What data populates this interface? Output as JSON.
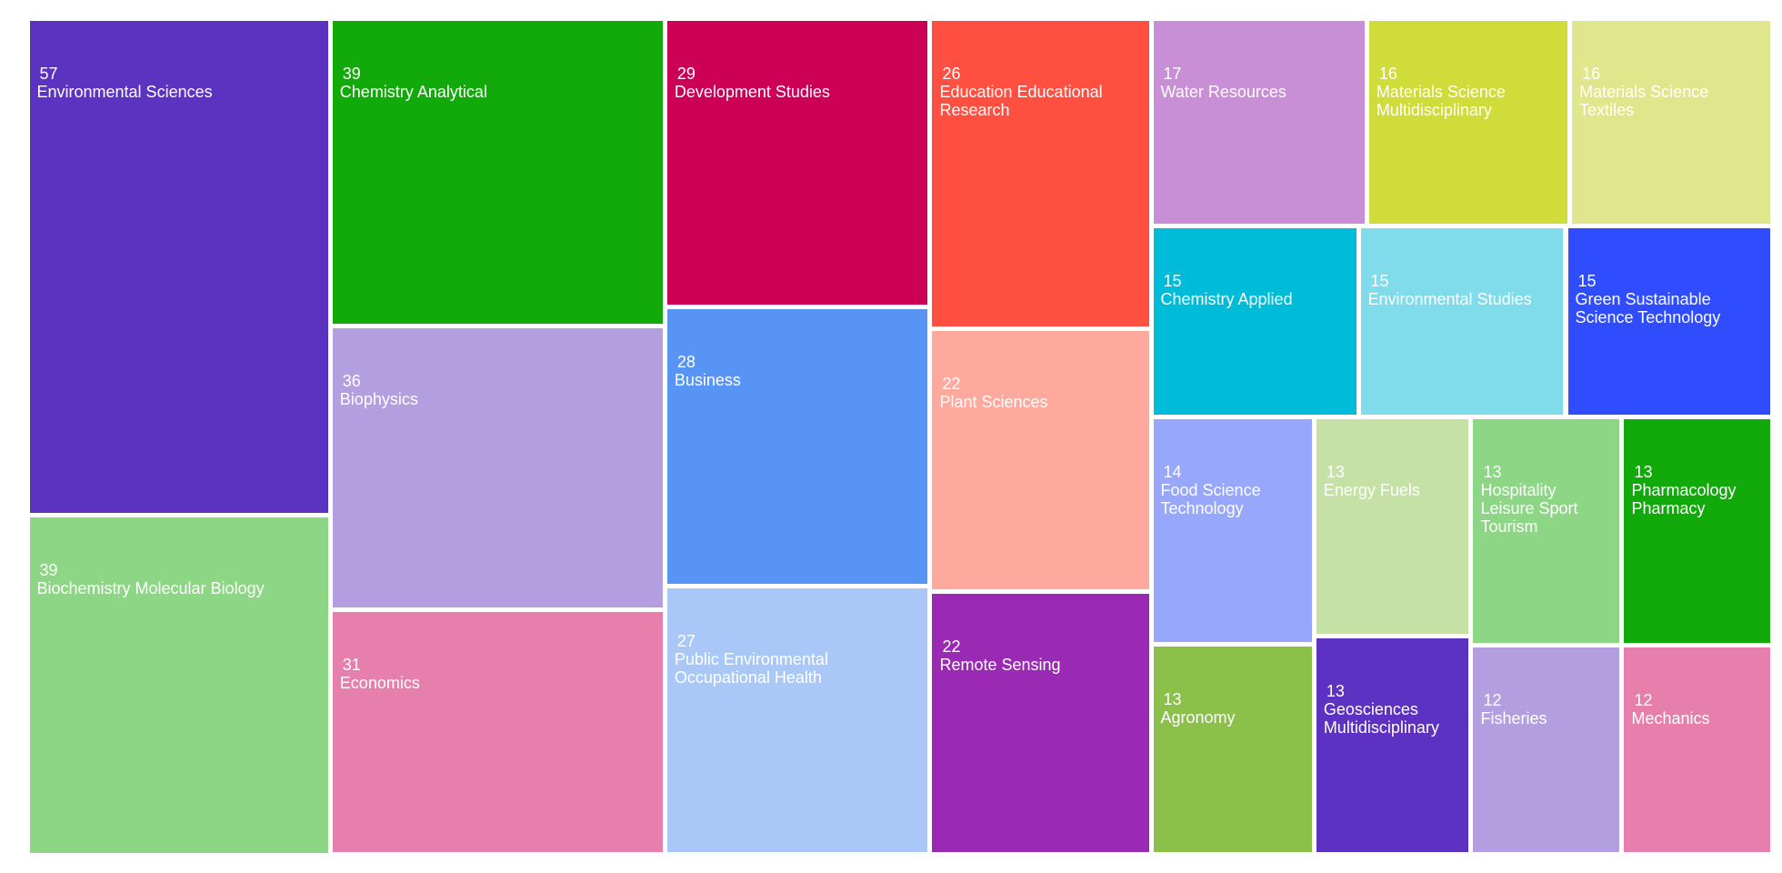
{
  "chart_data": {
    "type": "treemap",
    "categories": [
      "Environmental Sciences",
      "Biochemistry Molecular Biology",
      "Chemistry Analytical",
      "Biophysics",
      "Economics",
      "Development Studies",
      "Business",
      "Public Environmental Occupational Health",
      "Education Educational Research",
      "Plant Sciences",
      "Remote Sensing",
      "Water Resources",
      "Materials Science Multidisciplinary",
      "Materials Science Textiles",
      "Chemistry Applied",
      "Environmental Studies",
      "Green Sustainable Science Technology",
      "Food Science Technology",
      "Agronomy",
      "Energy Fuels",
      "Geosciences Multidisciplinary",
      "Hospitality Leisure Sport Tourism",
      "Pharmacology Pharmacy",
      "Fisheries",
      "Mechanics"
    ],
    "values": [
      57,
      39,
      39,
      36,
      31,
      29,
      28,
      27,
      26,
      22,
      22,
      17,
      16,
      16,
      15,
      15,
      15,
      14,
      13,
      13,
      13,
      13,
      13,
      12,
      12
    ],
    "colors": [
      "#5c33c1",
      "#8dd685",
      "#12a90a",
      "#b39fe0",
      "#e67fab",
      "#cc0055",
      "#5894f3",
      "#a9c8f8",
      "#ff4f40",
      "#ffa89e",
      "#9a29b3",
      "#c98fd6",
      "#cfdc3a",
      "#e0e68b",
      "#00bcd8",
      "#80dcea",
      "#2f4cff",
      "#96a7fc",
      "#8bc04a",
      "#c5e1a5",
      "#5d32c2",
      "#8dd685",
      "#12a90a",
      "#b39fe0",
      "#e67fab"
    ]
  }
}
